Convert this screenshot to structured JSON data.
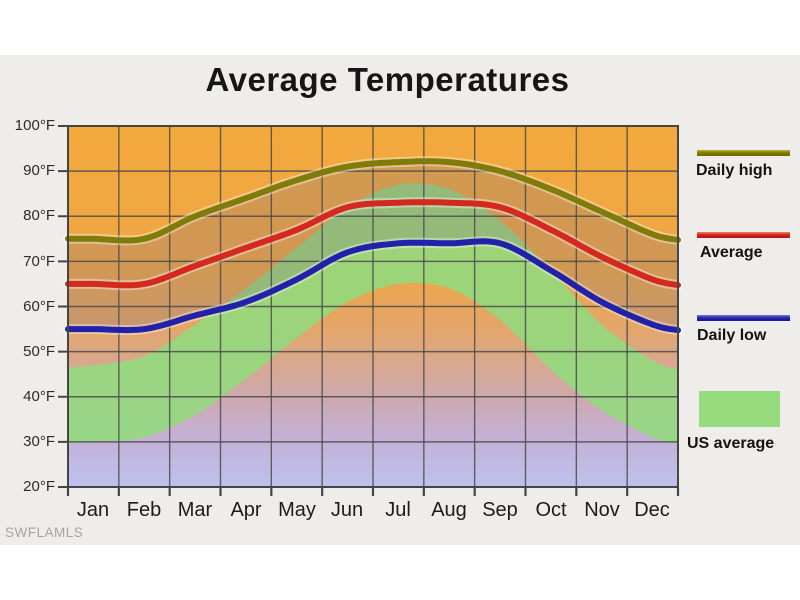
{
  "page": {
    "watermark": "SWFLAMLS"
  },
  "chart": {
    "title": "Average Temperatures",
    "legend": [
      {
        "label": "Daily high",
        "type": "line",
        "color": "#7F7C0A"
      },
      {
        "label": "Average",
        "type": "line",
        "color": "#D5281E"
      },
      {
        "label": "Daily low",
        "type": "line",
        "color": "#2121AA"
      },
      {
        "label": "US average",
        "type": "area",
        "color": "#97DB7F"
      }
    ]
  },
  "chart_data": {
    "type": "line",
    "title": "Average Temperatures",
    "categories": [
      "Jan",
      "Feb",
      "Mar",
      "Apr",
      "May",
      "Jun",
      "Jul",
      "Aug",
      "Sep",
      "Oct",
      "Nov",
      "Dec"
    ],
    "ytick_labels": [
      "100°F",
      "90°F",
      "80°F",
      "70°F",
      "60°F",
      "50°F",
      "40°F",
      "30°F",
      "20°F"
    ],
    "ylim": [
      20,
      100
    ],
    "ylabel": "°F",
    "xlabel": "",
    "grid": true,
    "legend_position": "right",
    "series": [
      {
        "name": "Daily high",
        "color": "#7F7C0A",
        "values": [
          75,
          75,
          80,
          84,
          88,
          91,
          92,
          92,
          90,
          86,
          81,
          76
        ]
      },
      {
        "name": "Average",
        "color": "#D5281E",
        "values": [
          65,
          65,
          69,
          73,
          77,
          82,
          83,
          83,
          82,
          77,
          71,
          66
        ]
      },
      {
        "name": "Daily low",
        "color": "#2121AA",
        "values": [
          55,
          55,
          58,
          61,
          66,
          72,
          74,
          74,
          74,
          68,
          61,
          56
        ]
      }
    ],
    "us_average_band": {
      "name": "US average",
      "color": "#93D97E",
      "high": [
        47,
        49,
        56,
        64,
        73,
        82,
        87,
        86,
        79,
        68,
        56,
        48
      ],
      "low": [
        30,
        31,
        36,
        44,
        53,
        61,
        65,
        64,
        57,
        46,
        37,
        31
      ]
    },
    "background": {
      "top_color": "#F2A93C",
      "mid_color": "#D9A88C",
      "bottom_color": "#BEC2EE",
      "panel_color": "#EFEDE9",
      "grid_color": "#4B4B4B"
    }
  }
}
